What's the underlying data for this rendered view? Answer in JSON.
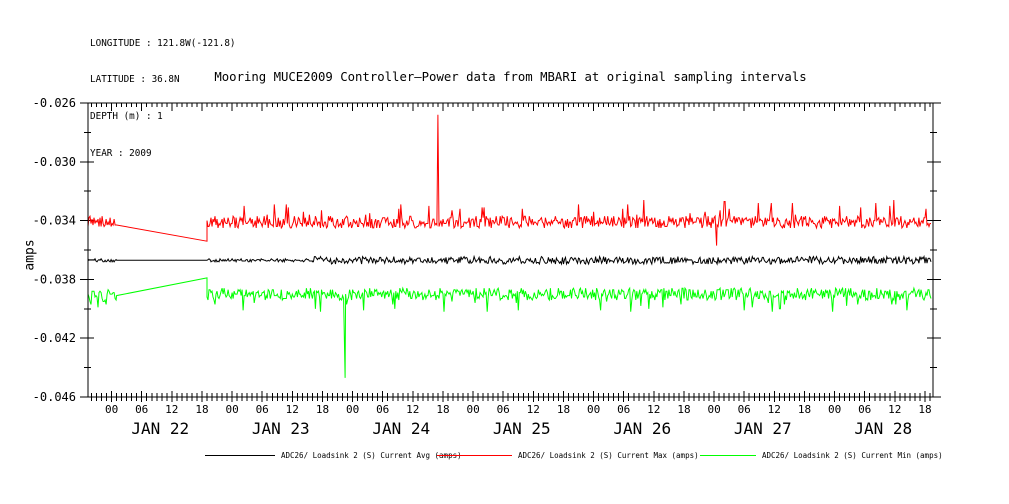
{
  "header": {
    "lines": [
      "LONGITUDE : 121.8W(-121.8)",
      "LATITUDE : 36.8N",
      "DEPTH (m) : 1",
      "YEAR : 2009"
    ]
  },
  "chart_data": {
    "type": "line",
    "title": "Mooring MUCE2009 Controller—Power data from MBARI at original sampling intervals",
    "ylabel": "amps",
    "ylim": [
      -0.046,
      -0.026
    ],
    "ytick_labels": [
      "-0.026",
      "-0.030",
      "-0.034",
      "-0.038",
      "-0.042",
      "-0.046"
    ],
    "ytick_major_step": 0.004,
    "ytick_minor_step": 0.002,
    "x_axis": {
      "epoch": "hours since JAN 22 00:00, year 2009",
      "range_hours": [
        -4.7,
        163.6
      ],
      "major_tick_hours": 6,
      "minor_tick_hours": 1,
      "hour_labels": [
        "00",
        "06",
        "12",
        "18"
      ],
      "day_labels": [
        "JAN 22",
        "JAN 23",
        "JAN 24",
        "JAN 25",
        "JAN 26",
        "JAN 27",
        "JAN 28"
      ]
    },
    "grid": false,
    "legend_position": "bottom",
    "series": [
      {
        "name": "ADC26/ Loadsink 2 (S) Current Avg (amps)",
        "color": "#000000",
        "summary": "flat near -0.0367 amps with small jitter; straight interpolated data gap JAN 22 01:00-19:00",
        "segments": [
          {
            "kind": "noise",
            "t0": -4.7,
            "t1": 1.0,
            "base": -0.0367,
            "step": 5e-05,
            "max_steps": 2,
            "spike_prob": 0,
            "spike_dir": 1,
            "spike_min": 0,
            "spike_max": 0
          },
          {
            "kind": "linear",
            "t0": 1.0,
            "t1": 19.0,
            "v0": -0.0367,
            "v1": -0.0367
          },
          {
            "kind": "noise",
            "t0": 19.0,
            "t1": 40.0,
            "base": -0.0367,
            "step": 5e-05,
            "max_steps": 2,
            "spike_prob": 0,
            "spike_dir": 1,
            "spike_min": 0,
            "spike_max": 0
          },
          {
            "kind": "noise",
            "t0": 40.0,
            "t1": 163.3,
            "base": -0.0367,
            "step": 5e-05,
            "max_steps": 5,
            "spike_prob": 0,
            "spike_dir": 1,
            "spike_min": 0,
            "spike_max": 0
          }
        ],
        "events": []
      },
      {
        "name": "ADC26/ Loadsink 2 (S) Current Max (amps)",
        "color": "#ff0000",
        "summary": "noisy band near -0.034 amps; gap JAN 22 01:00-19:00 interpolated from -0.0343 down to -0.0354; tall spike to -0.0268 on JAN 24 ~17:00; dip to -0.0357 near JAN 27 00:00",
        "segments": [
          {
            "kind": "noise",
            "t0": -4.7,
            "t1": 1.0,
            "base": -0.0341,
            "step": 0.0001,
            "max_steps": 4,
            "spike_prob": 0.04,
            "spike_dir": 1,
            "spike_min": 4,
            "spike_max": 8
          },
          {
            "kind": "linear",
            "t0": 1.0,
            "t1": 19.0,
            "v0": -0.0343,
            "v1": -0.0354
          },
          {
            "kind": "noise",
            "t0": 19.0,
            "t1": 163.3,
            "base": -0.0341,
            "step": 0.0001,
            "max_steps": 4,
            "spike_prob": 0.06,
            "spike_dir": 1,
            "spike_min": 5,
            "spike_max": 15
          }
        ],
        "events": [
          {
            "t": 65.0,
            "v": -0.0268
          },
          {
            "t": 120.5,
            "v": -0.0357
          }
        ]
      },
      {
        "name": "ADC26/ Loadsink 2 (S) Current Min (amps)",
        "color": "#00ff00",
        "summary": "noisy band near -0.039 amps; gap JAN 22 01:00-19:00 interpolated from -0.0391 up to -0.0379; deep spike to -0.0447 on JAN 23 ~22:30",
        "segments": [
          {
            "kind": "noise",
            "t0": -4.7,
            "t1": 1.0,
            "base": -0.0391,
            "step": 0.0001,
            "max_steps": 4,
            "spike_prob": 0.06,
            "spike_dir": -1,
            "spike_min": 4,
            "spike_max": 8
          },
          {
            "kind": "linear",
            "t0": 1.0,
            "t1": 19.0,
            "v0": -0.0391,
            "v1": -0.0379
          },
          {
            "kind": "noise",
            "t0": 19.0,
            "t1": 163.3,
            "base": -0.039,
            "step": 0.0001,
            "max_steps": 4,
            "spike_prob": 0.06,
            "spike_dir": -1,
            "spike_min": 5,
            "spike_max": 12
          }
        ],
        "events": [
          {
            "t": 46.5,
            "v": -0.0447
          }
        ]
      }
    ],
    "legend": [
      {
        "label": "ADC26/ Loadsink 2 (S) Current Avg (amps)",
        "color": "#000000"
      },
      {
        "label": "ADC26/ Loadsink 2 (S) Current Max (amps)",
        "color": "#ff0000"
      },
      {
        "label": "ADC26/ Loadsink 2 (S) Current Min (amps)",
        "color": "#00ff00"
      }
    ]
  },
  "colors": {
    "background": "#ffffff",
    "frame": "#000000"
  }
}
